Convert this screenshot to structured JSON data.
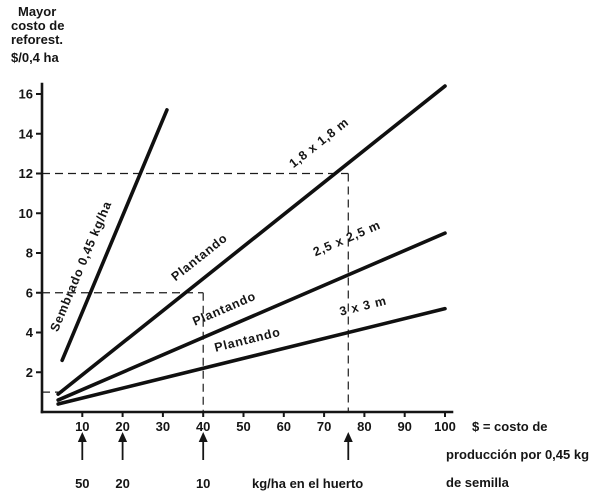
{
  "colors": {
    "ink": "#151515",
    "background": "#ffffff"
  },
  "chart_data": {
    "type": "line",
    "title": "",
    "y_axis": {
      "title_lines": [
        "Mayor",
        "costo de",
        "reforest.",
        "$/0,4 ha"
      ],
      "range": [
        0,
        16
      ],
      "ticks": [
        2,
        4,
        6,
        8,
        10,
        12,
        14,
        16
      ]
    },
    "x_axis": {
      "range": [
        0,
        100
      ],
      "ticks": [
        10,
        20,
        30,
        40,
        50,
        60,
        70,
        80,
        90,
        100
      ]
    },
    "grid": false,
    "legend": "labels-on-lines",
    "series": [
      {
        "name": "Sembrado 0,45 kg/ha",
        "points": [
          [
            5,
            2.6
          ],
          [
            31,
            15.2
          ]
        ],
        "labels": [
          {
            "text": "Sembrado 0,45 kg/ha",
            "at_x": 14,
            "offset": 15
          }
        ]
      },
      {
        "name": "Plantando 1,8 x 1,8 m",
        "points": [
          [
            4,
            0.9
          ],
          [
            100,
            16.4
          ]
        ],
        "labels": [
          {
            "text": "Plantando",
            "at_x": 42,
            "offset": 15
          },
          {
            "text": "1,8 x 1,8 m",
            "at_x": 74,
            "offset": 30
          }
        ]
      },
      {
        "name": "Plantando 2,5 x 2,5 m",
        "points": [
          [
            4,
            0.6
          ],
          [
            100,
            9.0
          ]
        ],
        "labels": [
          {
            "text": "Plantando",
            "at_x": 47,
            "offset": 14
          },
          {
            "text": "2,5 x 2,5 m",
            "at_x": 79,
            "offset": 30
          }
        ]
      },
      {
        "name": "Plantando 3 x 3 m",
        "points": [
          [
            4,
            0.4
          ],
          [
            100,
            5.2
          ]
        ],
        "labels": [
          {
            "text": "Plantando",
            "at_x": 52,
            "offset": 13
          },
          {
            "text": "3 x 3 m",
            "at_x": 81,
            "offset": 18
          }
        ]
      }
    ],
    "dashed_guides": [
      {
        "x": 76,
        "y": 12
      },
      {
        "x": 40,
        "y": 6
      },
      {
        "x": 6,
        "y": 1,
        "h_only": true
      }
    ],
    "below_axis_arrows": [
      {
        "x": 10,
        "label": "50"
      },
      {
        "x": 20,
        "label": "20"
      },
      {
        "x": 40,
        "label": "10"
      },
      {
        "x": 76,
        "label": ""
      }
    ],
    "huerto_axis_label": "kg/ha en el huerto",
    "right_note_lines": [
      "$ = costo de",
      "producción por 0,45 kg",
      "de semilla"
    ]
  }
}
